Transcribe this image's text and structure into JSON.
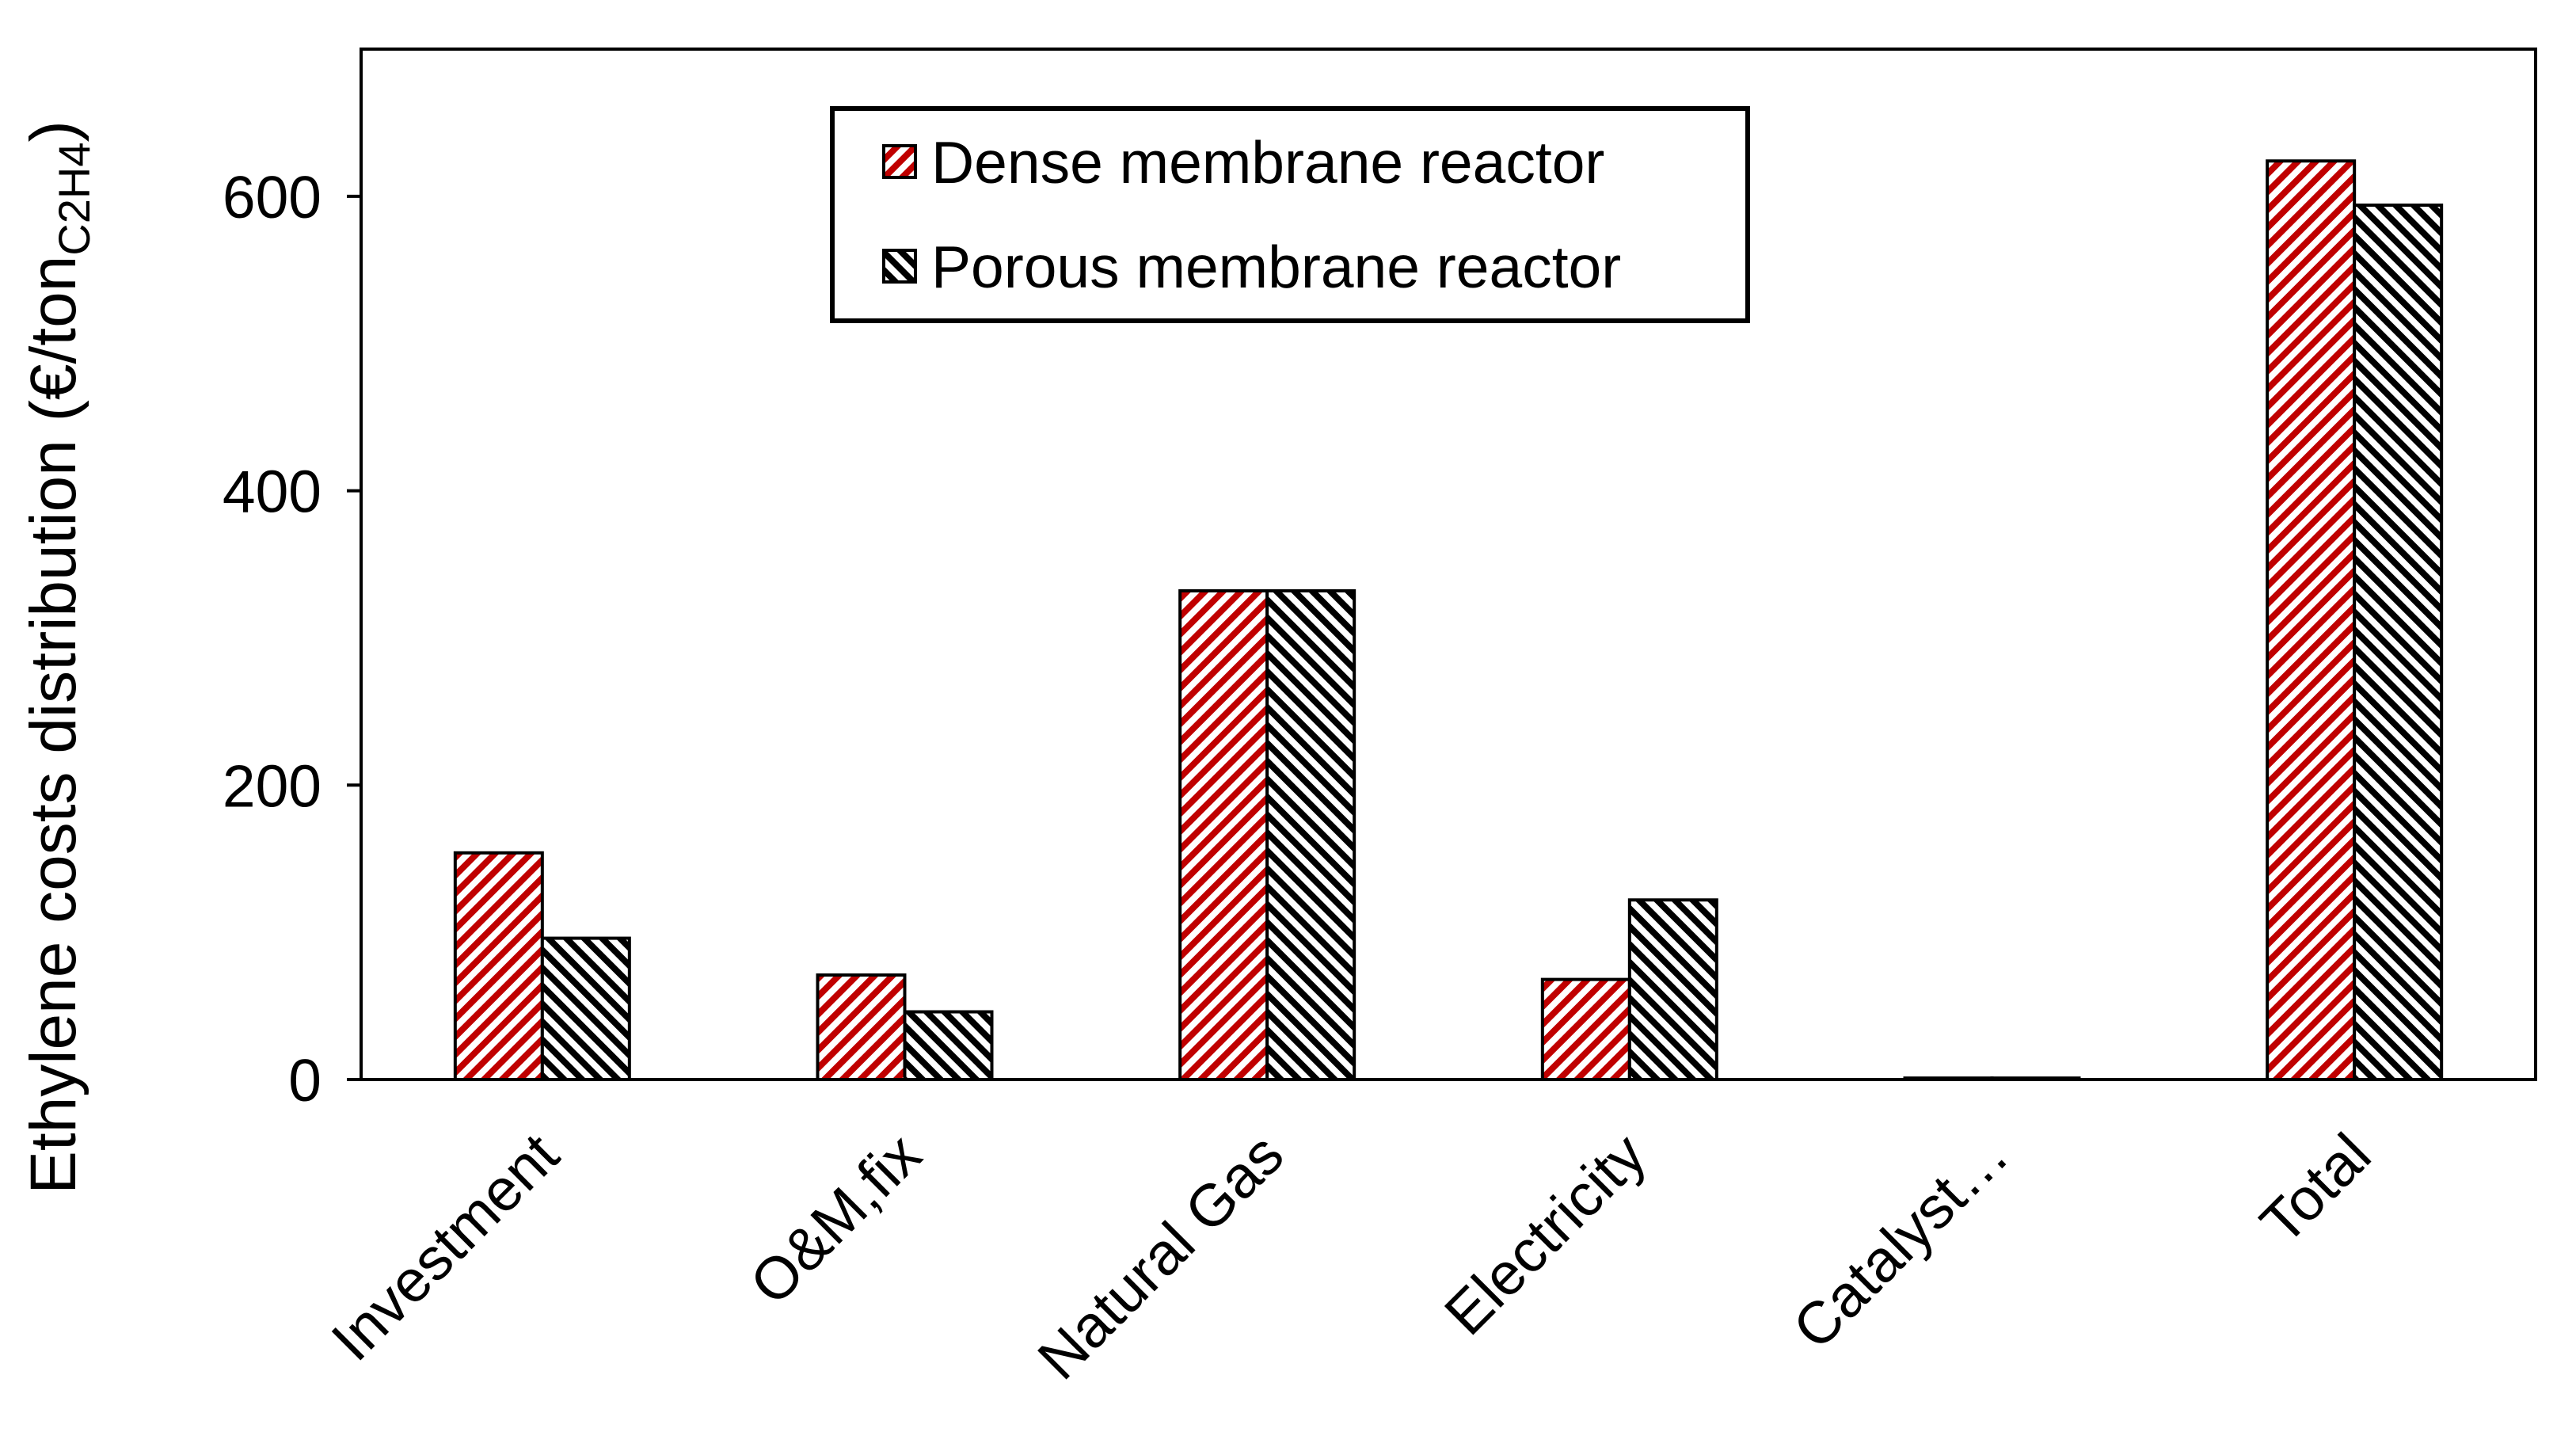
{
  "chart_data": {
    "type": "bar",
    "ylabel": {
      "text": "Ethylene costs distribution (€/ton",
      "subscript": "C2H4",
      "suffix": ")"
    },
    "categories": [
      "Investment",
      "O&M,fix",
      "Natural Gas",
      "Electricity",
      "Catalyst…",
      "Total"
    ],
    "series": [
      {
        "name": "Dense membrane reactor",
        "color": "#c00000",
        "hatch": "/",
        "values": [
          154,
          71,
          332,
          68,
          1,
          624
        ]
      },
      {
        "name": "Porous membrane reactor",
        "color": "#000000",
        "hatch": "\\",
        "values": [
          96,
          46,
          332,
          122,
          1,
          594
        ]
      }
    ],
    "ylim": [
      0,
      700
    ],
    "yticks": [
      0,
      200,
      400,
      600
    ],
    "grid": false,
    "legend_position": "top"
  }
}
